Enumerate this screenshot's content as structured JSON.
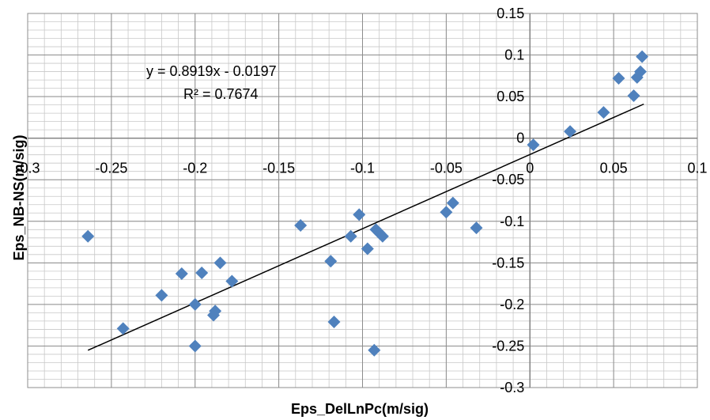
{
  "chart_data": {
    "type": "scatter",
    "title": "",
    "xlabel": "Eps_DelLnPc(m/sig)",
    "ylabel": "Eps_NB-NS(m/sig)",
    "xlim": [
      -0.3,
      0.1
    ],
    "ylim": [
      -0.3,
      0.15
    ],
    "x_major_step": 0.05,
    "y_major_step": 0.05,
    "x_minor_step": 0.01,
    "y_minor_step": 0.01,
    "x_tick_labels": [
      "-0.3",
      "-0.25",
      "-0.2",
      "-0.15",
      "-0.1",
      "-0.05",
      "0",
      "0.05",
      "0.1"
    ],
    "y_tick_labels": [
      "0.15",
      "0.1",
      "0.05",
      "0",
      "-0.05",
      "-0.1",
      "-0.15",
      "-0.2",
      "-0.25",
      "-0.3"
    ],
    "grid": true,
    "marker": "diamond",
    "marker_color": "#4F81BD",
    "trendline_color": "#000000",
    "trendline": {
      "slope": 0.8919,
      "intercept": -0.0197,
      "x_range": [
        -0.264,
        0.068
      ]
    },
    "annotations": {
      "equation": "y = 0.8919x - 0.0197",
      "r_squared": "R² = 0.7674"
    },
    "points": [
      {
        "x": -0.264,
        "y": -0.118
      },
      {
        "x": -0.243,
        "y": -0.229
      },
      {
        "x": -0.22,
        "y": -0.189
      },
      {
        "x": -0.208,
        "y": -0.163
      },
      {
        "x": -0.2,
        "y": -0.2
      },
      {
        "x": -0.2,
        "y": -0.25
      },
      {
        "x": -0.196,
        "y": -0.162
      },
      {
        "x": -0.188,
        "y": -0.208
      },
      {
        "x": -0.189,
        "y": -0.213
      },
      {
        "x": -0.185,
        "y": -0.15
      },
      {
        "x": -0.178,
        "y": -0.172
      },
      {
        "x": -0.137,
        "y": -0.105
      },
      {
        "x": -0.119,
        "y": -0.148
      },
      {
        "x": -0.117,
        "y": -0.221
      },
      {
        "x": -0.107,
        "y": -0.118
      },
      {
        "x": -0.102,
        "y": -0.092
      },
      {
        "x": -0.097,
        "y": -0.133
      },
      {
        "x": -0.092,
        "y": -0.11
      },
      {
        "x": -0.09,
        "y": -0.114
      },
      {
        "x": -0.088,
        "y": -0.118
      },
      {
        "x": -0.093,
        "y": -0.255
      },
      {
        "x": -0.05,
        "y": -0.089
      },
      {
        "x": -0.046,
        "y": -0.078
      },
      {
        "x": -0.032,
        "y": -0.108
      },
      {
        "x": 0.002,
        "y": -0.008
      },
      {
        "x": 0.024,
        "y": 0.008
      },
      {
        "x": 0.044,
        "y": 0.031
      },
      {
        "x": 0.053,
        "y": 0.072
      },
      {
        "x": 0.062,
        "y": 0.051
      },
      {
        "x": 0.064,
        "y": 0.073
      },
      {
        "x": 0.066,
        "y": 0.08
      },
      {
        "x": 0.067,
        "y": 0.098
      }
    ]
  }
}
